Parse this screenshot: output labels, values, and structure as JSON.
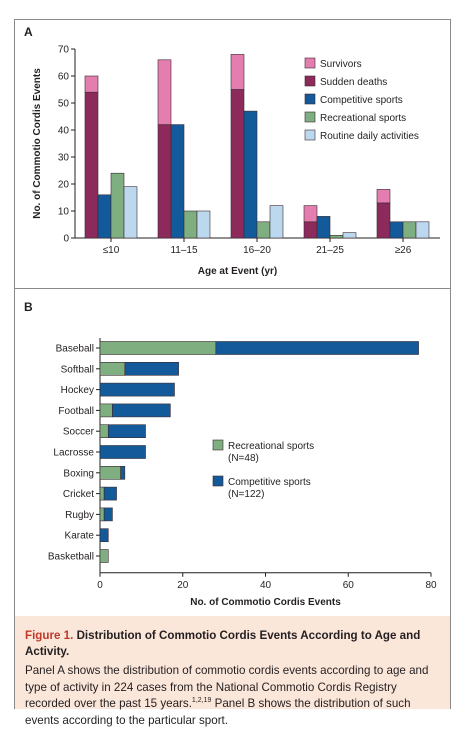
{
  "panels": {
    "a_letter": "A",
    "b_letter": "B"
  },
  "colors": {
    "survivors": "#e47eaf",
    "sudden_deaths": "#8b2a5b",
    "competitive": "#135a9a",
    "recreational": "#7fae80",
    "routine": "#bcd8ee"
  },
  "chart_data": [
    {
      "type": "bar",
      "subtype": "grouped-stacked",
      "categories": [
        "≤10",
        "11–15",
        "16–20",
        "21–25",
        "≥26"
      ],
      "xlabel": "Age at Event (yr)",
      "ylabel": "No. of Commotio Cordis Events",
      "ylim": [
        0,
        70
      ],
      "yticks": [
        0,
        10,
        20,
        30,
        40,
        50,
        60,
        70
      ],
      "legend_position": "top-right",
      "legend": [
        "Survivors",
        "Sudden deaths",
        "Competitive sports",
        "Recreational sports",
        "Routine daily activities"
      ],
      "series": [
        {
          "name": "Sudden deaths",
          "group": "outcome",
          "values": [
            54,
            42,
            55,
            6,
            13
          ]
        },
        {
          "name": "Survivors",
          "group": "outcome",
          "values": [
            6,
            24,
            13,
            6,
            5
          ]
        },
        {
          "name": "Competitive sports",
          "group": "competitive",
          "values": [
            16,
            42,
            47,
            8,
            6
          ]
        },
        {
          "name": "Recreational sports",
          "group": "recreational",
          "values": [
            24,
            10,
            6,
            1,
            6
          ]
        },
        {
          "name": "Routine daily activities",
          "group": "routine",
          "values": [
            19,
            10,
            12,
            2,
            6
          ]
        }
      ]
    },
    {
      "type": "bar",
      "subtype": "horizontal-stacked",
      "categories": [
        "Baseball",
        "Softball",
        "Hockey",
        "Football",
        "Soccer",
        "Lacrosse",
        "Boxing",
        "Cricket",
        "Rugby",
        "Karate",
        "Basketball"
      ],
      "xlabel": "No. of Commotio Cordis Events",
      "xlim": [
        0,
        80
      ],
      "xticks": [
        0,
        20,
        40,
        60,
        80
      ],
      "legend_position": "center-right",
      "series": [
        {
          "name": "Recreational sports",
          "legend_n": "(N=48)",
          "values": [
            28,
            6,
            0,
            3,
            2,
            0,
            5,
            1,
            1,
            0,
            2
          ]
        },
        {
          "name": "Competitive sports",
          "legend_n": "(N=122)",
          "values": [
            49,
            13,
            18,
            14,
            9,
            11,
            1,
            3,
            2,
            2,
            0
          ]
        }
      ]
    }
  ],
  "caption": {
    "fig_label": "Figure 1.",
    "title": "Distribution of Commotio Cordis Events According to Age and Activity.",
    "body_1": "Panel A shows the distribution of commotio cordis events according to age and type of activity in 224 cases from the National Commotio Cordis Registry recorded over the past 15 years.",
    "refs": "1,2,19",
    "body_2": " Panel B shows the distribution of such events according to the particular sport."
  }
}
